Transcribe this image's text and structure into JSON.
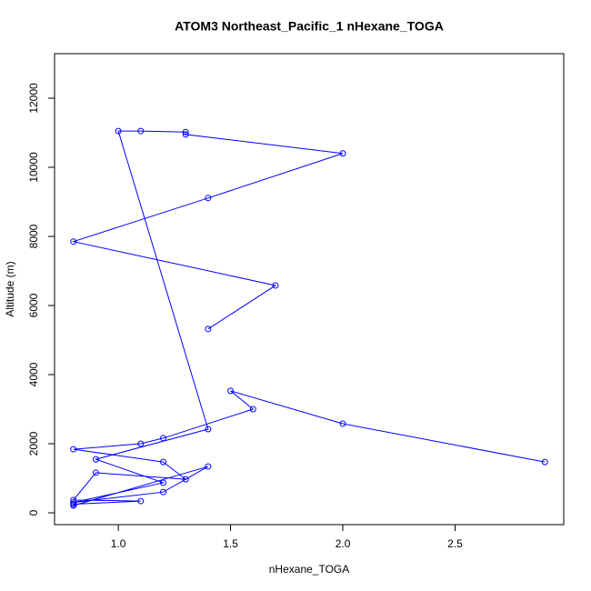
{
  "chart_data": {
    "type": "line",
    "title": "ATOM3 Northeast_Pacific_1 nHexane_TOGA",
    "x_label": "nHexane_TOGA",
    "y_label": "Altitude (m)",
    "color": "#0000ff",
    "x": [
      2.9,
      2.0,
      1.5,
      1.6,
      1.2,
      1.1,
      0.8,
      1.2,
      1.3,
      0.9,
      0.8,
      1.1,
      0.8,
      0.8,
      1.4,
      1.2,
      0.8,
      1.2,
      0.9,
      1.4,
      1.0,
      1.1,
      1.3,
      1.3,
      2.0,
      1.4,
      0.8,
      1.7,
      1.4
    ],
    "values": [
      1470,
      2580,
      3530,
      3000,
      2160,
      2000,
      1840,
      1470,
      970,
      1160,
      370,
      340,
      250,
      210,
      1340,
      600,
      300,
      870,
      1550,
      2420,
      11050,
      11050,
      11020,
      10950,
      10400,
      9110,
      7850,
      6580,
      5320
    ],
    "xlim": [
      0.716,
      2.984
    ],
    "ylim": [
      -342,
      13289
    ],
    "xticks": [
      {
        "value": 1,
        "label": "1.0"
      },
      1.5,
      {
        "value": 2,
        "label": "2.0"
      },
      2.5
    ],
    "yticks": [
      0,
      2000,
      4000,
      6000,
      8000,
      10000,
      12000
    ]
  }
}
